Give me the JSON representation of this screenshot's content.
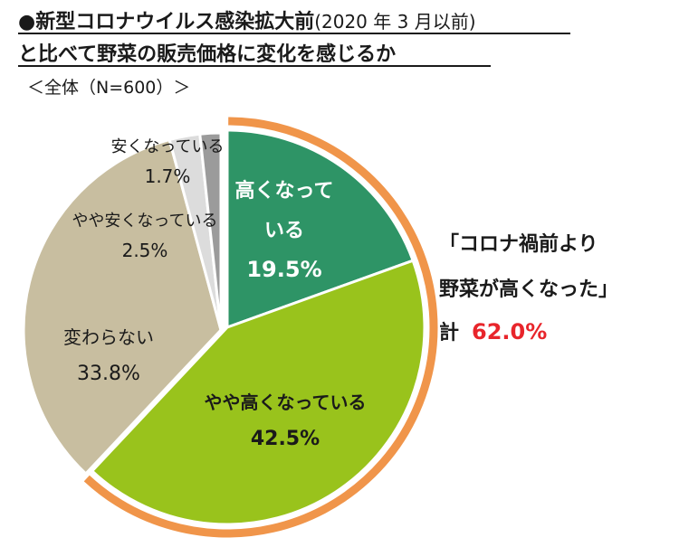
{
  "header": {
    "title_main": "●新型コロナウイルス感染拡大前",
    "title_note": "(2020 年 3 月以前)",
    "title_line2": "と比べて野菜の販売価格に変化を感じるか",
    "sample": "＜全体（N=600）＞"
  },
  "callout": {
    "line1": "「コロナ禍前より",
    "line2": "野菜が高くなった」",
    "total_label": "計",
    "total_value": "62.0%",
    "bracket_color": "#f0954a",
    "value_color": "#e8252b"
  },
  "chart_data": {
    "type": "pie",
    "unit": "%",
    "start": "12 o'clock, clockwise",
    "slices": [
      {
        "label_lines": [
          "高くなって",
          "いる"
        ],
        "value_text": "19.5%",
        "value": 19.5,
        "color": "#2e9466",
        "text_color": "#ffffff",
        "exploded": true
      },
      {
        "label_lines": [
          "やや高くなっている"
        ],
        "value_text": "42.5%",
        "value": 42.5,
        "color": "#99c31c",
        "text_color": "#1a1a1a",
        "exploded": true
      },
      {
        "label_lines": [
          "変わらない"
        ],
        "value_text": "33.8%",
        "value": 33.8,
        "color": "#c8bea0",
        "text_color": "#1a1a1a",
        "exploded": false
      },
      {
        "label_lines": [
          "やや安くなっている"
        ],
        "value_text": "2.5%",
        "value": 2.5,
        "color": "#dcdcdc",
        "text_color": "#1a1a1a",
        "exploded": false
      },
      {
        "label_lines": [
          "安くなっている"
        ],
        "value_text": "1.7%",
        "value": 1.7,
        "color": "#9b9b9b",
        "text_color": "#1a1a1a",
        "exploded": false
      }
    ]
  }
}
